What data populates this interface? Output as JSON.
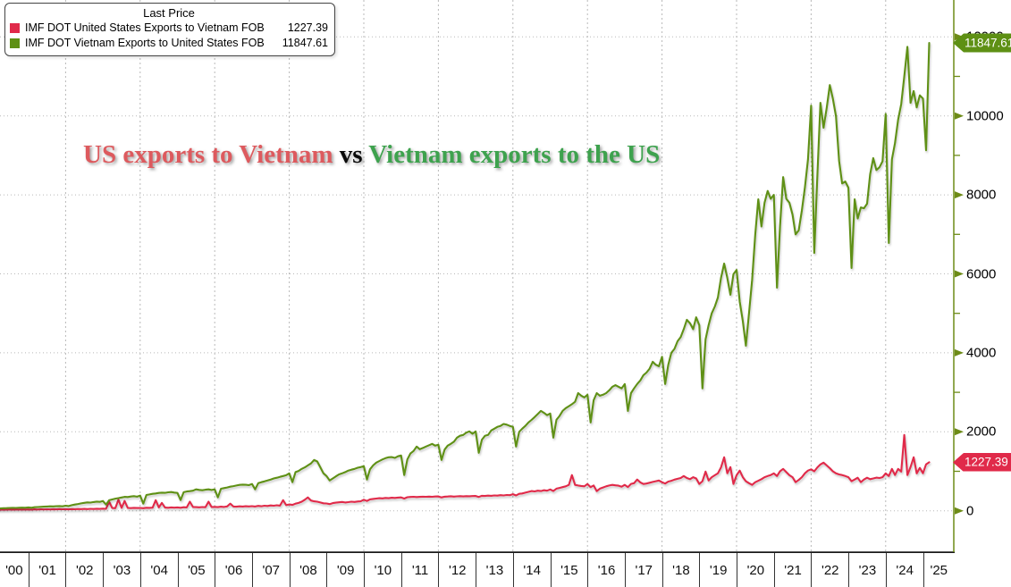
{
  "legend": {
    "title": "Last Price",
    "items": [
      {
        "label": "IMF DOT United States Exports to Vietnam FOB",
        "value": "1227.39",
        "color": "#e02a4a"
      },
      {
        "label": "IMF DOT Vietnam Exports to United States FOB",
        "value": "11847.61",
        "color": "#5e9014"
      }
    ]
  },
  "title": {
    "us": "US exports to Vietnam",
    "vs": " vs ",
    "vn": "Vietnam exports to the US",
    "us_color": "#dd5a5e",
    "vs_color": "#0a0a0a",
    "vn_color": "#3ea24e"
  },
  "badges": {
    "red": "1227.39",
    "green": "11847.61"
  },
  "colors": {
    "red_line": "#e02a4a",
    "green_line": "#5e9014",
    "axis": "#6d8b17",
    "grid": "#b8b8b8",
    "frame": "#1a1a1a"
  },
  "chart_data": {
    "type": "line",
    "title": "US exports to Vietnam vs Vietnam exports to the US",
    "frequency": "monthly",
    "x_range": [
      "2000-01",
      "2025-03"
    ],
    "x_tick_labels": [
      "'00",
      "'01",
      "'02",
      "'03",
      "'04",
      "'05",
      "'06",
      "'07",
      "'08",
      "'09",
      "'10",
      "'11",
      "'12",
      "'13",
      "'14",
      "'15",
      "'16",
      "'17",
      "'18",
      "'19",
      "'20",
      "'21",
      "'22",
      "'23",
      "'24",
      "'25"
    ],
    "y_ticks": [
      0,
      2000,
      4000,
      6000,
      8000,
      10000,
      12000
    ],
    "y_minor_ticks": [
      1000,
      3000,
      5000,
      7000,
      9000,
      11000
    ],
    "ylim": [
      -1900,
      12900
    ],
    "grid": "dotted",
    "legend_position": "top-left",
    "series": [
      {
        "name": "IMF DOT United States Exports to Vietnam FOB",
        "color": "#e02a4a",
        "last": 1227.39,
        "values": [
          28,
          25,
          30,
          27,
          32,
          29,
          33,
          30,
          34,
          31,
          35,
          32,
          33,
          30,
          36,
          32,
          38,
          34,
          39,
          35,
          40,
          36,
          42,
          38,
          40,
          36,
          44,
          40,
          46,
          42,
          48,
          44,
          50,
          46,
          52,
          48,
          55,
          50,
          230,
          70,
          65,
          280,
          75,
          250,
          72,
          68,
          74,
          70,
          72,
          65,
          78,
          74,
          80,
          270,
          85,
          200,
          82,
          78,
          86,
          80,
          85,
          78,
          90,
          86,
          230,
          95,
          92,
          88,
          96,
          90,
          230,
          95,
          100,
          92,
          105,
          98,
          110,
          180,
          108,
          104,
          112,
          108,
          115,
          110,
          118,
          108,
          125,
          115,
          130,
          122,
          135,
          128,
          140,
          132,
          270,
          145,
          160,
          150,
          180,
          200,
          230,
          280,
          339,
          260,
          240,
          230,
          210,
          190,
          185,
          170,
          195,
          205,
          215,
          225,
          210,
          220,
          230,
          225,
          235,
          240,
          280,
          250,
          290,
          300,
          310,
          320,
          315,
          325,
          320,
          330,
          325,
          335,
          340,
          310,
          345,
          350,
          355,
          348,
          352,
          358,
          355,
          360,
          356,
          362,
          365,
          340,
          358,
          362,
          368,
          360,
          366,
          370,
          365,
          372,
          368,
          374,
          375,
          350,
          380,
          376,
          385,
          380,
          390,
          385,
          395,
          390,
          400,
          395,
          420,
          390,
          430,
          440,
          460,
          480,
          500,
          490,
          510,
          500,
          520,
          510,
          540,
          500,
          560,
          580,
          600,
          620,
          655,
          904,
          655,
          640,
          630,
          620,
          678,
          600,
          640,
          497,
          560,
          590,
          620,
          640,
          655,
          645,
          635,
          610,
          655,
          600,
          680,
          700,
          791,
          720,
          678,
          690,
          710,
          730,
          750,
          768,
          723,
          690,
          740,
          760,
          790,
          810,
          830,
          881,
          830,
          800,
          850,
          820,
          678,
          750,
          994,
          768,
          850,
          900,
          950,
          1100,
          1356,
          950,
          1107,
          678,
          900,
          1017,
          850,
          750,
          700,
          655,
          723,
          760,
          800,
          850,
          880,
          904,
          949,
          880,
          1000,
          1062,
          980,
          900,
          850,
          723,
          780,
          850,
          950,
          1017,
          1050,
          1000,
          1100,
          1175,
          1220,
          1150,
          1080,
          1000,
          949,
          920,
          904,
          880,
          850,
          750,
          791,
          836,
          723,
          791,
          836,
          800,
          820,
          840,
          830,
          850,
          949,
          881,
          1062,
          904,
          1062,
          994,
          1921,
          904,
          1107,
          1356,
          949,
          1085,
          950,
          1176,
          1227.39
        ]
      },
      {
        "name": "IMF DOT Vietnam Exports to United States FOB",
        "color": "#5e9014",
        "last": 11847.61,
        "values": [
          55,
          50,
          58,
          62,
          65,
          68,
          72,
          75,
          73,
          78,
          80,
          76,
          85,
          78,
          90,
          95,
          100,
          104,
          108,
          112,
          110,
          116,
          120,
          114,
          128,
          120,
          142,
          158,
          172,
          188,
          202,
          212,
          208,
          222,
          232,
          226,
          249,
          158,
          268,
          288,
          308,
          322,
          338,
          352,
          348,
          362,
          372,
          358,
          384,
          180,
          400,
          415,
          429,
          440,
          452,
          460,
          455,
          468,
          475,
          462,
          452,
          271,
          470,
          488,
          497,
          510,
          542,
          530,
          520,
          535,
          542,
          528,
          542,
          339,
          558,
          575,
          590,
          610,
          625,
          640,
          655,
          662,
          658,
          650,
          678,
          542,
          700,
          723,
          745,
          768,
          791,
          820,
          836,
          860,
          881,
          900,
          949,
          723,
          980,
          1010,
          1062,
          1100,
          1150,
          1200,
          1288,
          1250,
          1100,
          950,
          881,
          768,
          820,
          870,
          920,
          949,
          980,
          1017,
          1040,
          1062,
          1090,
          1107,
          1130,
          791,
          1050,
          1150,
          1220,
          1260,
          1300,
          1333,
          1356,
          1360,
          1340,
          1380,
          1401,
          904,
          1300,
          1450,
          1514,
          1627,
          1559,
          1590,
          1627,
          1660,
          1695,
          1650,
          1672,
          1288,
          1550,
          1650,
          1695,
          1750,
          1853,
          1900,
          1921,
          1980,
          2011,
          1950,
          2011,
          1469,
          1800,
          1898,
          1921,
          2034,
          2080,
          2124,
          2150,
          2200,
          2180,
          2150,
          2124,
          1627,
          2000,
          2080,
          2150,
          2237,
          2300,
          2373,
          2450,
          2530,
          2480,
          2420,
          2464,
          1853,
          2305,
          2400,
          2530,
          2600,
          2650,
          2700,
          2760,
          2980,
          2915,
          2870,
          2938,
          2237,
          2800,
          2980,
          2915,
          2940,
          2980,
          3050,
          3140,
          3180,
          3140,
          3100,
          3210,
          2530,
          2980,
          3100,
          3210,
          3300,
          3435,
          3500,
          3600,
          3774,
          3700,
          3661,
          3900,
          3210,
          3700,
          4000,
          4100,
          4294,
          4400,
          4600,
          4836,
          4750,
          4600,
          4900,
          4700,
          3100,
          4340,
          4700,
          5000,
          5175,
          5400,
          5900,
          6260,
          5900,
          5470,
          5990,
          6100,
          5300,
          4800,
          4180,
          5000,
          5850,
          7000,
          7890,
          7200,
          7800,
          8100,
          7900,
          8000,
          5650,
          7200,
          8450,
          7900,
          7800,
          7500,
          7000,
          7100,
          7600,
          8200,
          8900,
          10260,
          6530,
          8500,
          10330,
          9700,
          10200,
          10780,
          10440,
          9990,
          8860,
          8290,
          8340,
          8180,
          6150,
          7890,
          7400,
          7680,
          7660,
          7775,
          8520,
          8930,
          8630,
          8700,
          8850,
          10050,
          6780,
          8900,
          9310,
          9900,
          10300,
          11000,
          11750,
          10330,
          10630,
          10215,
          10520,
          10440,
          9130,
          11847.61
        ]
      }
    ]
  }
}
